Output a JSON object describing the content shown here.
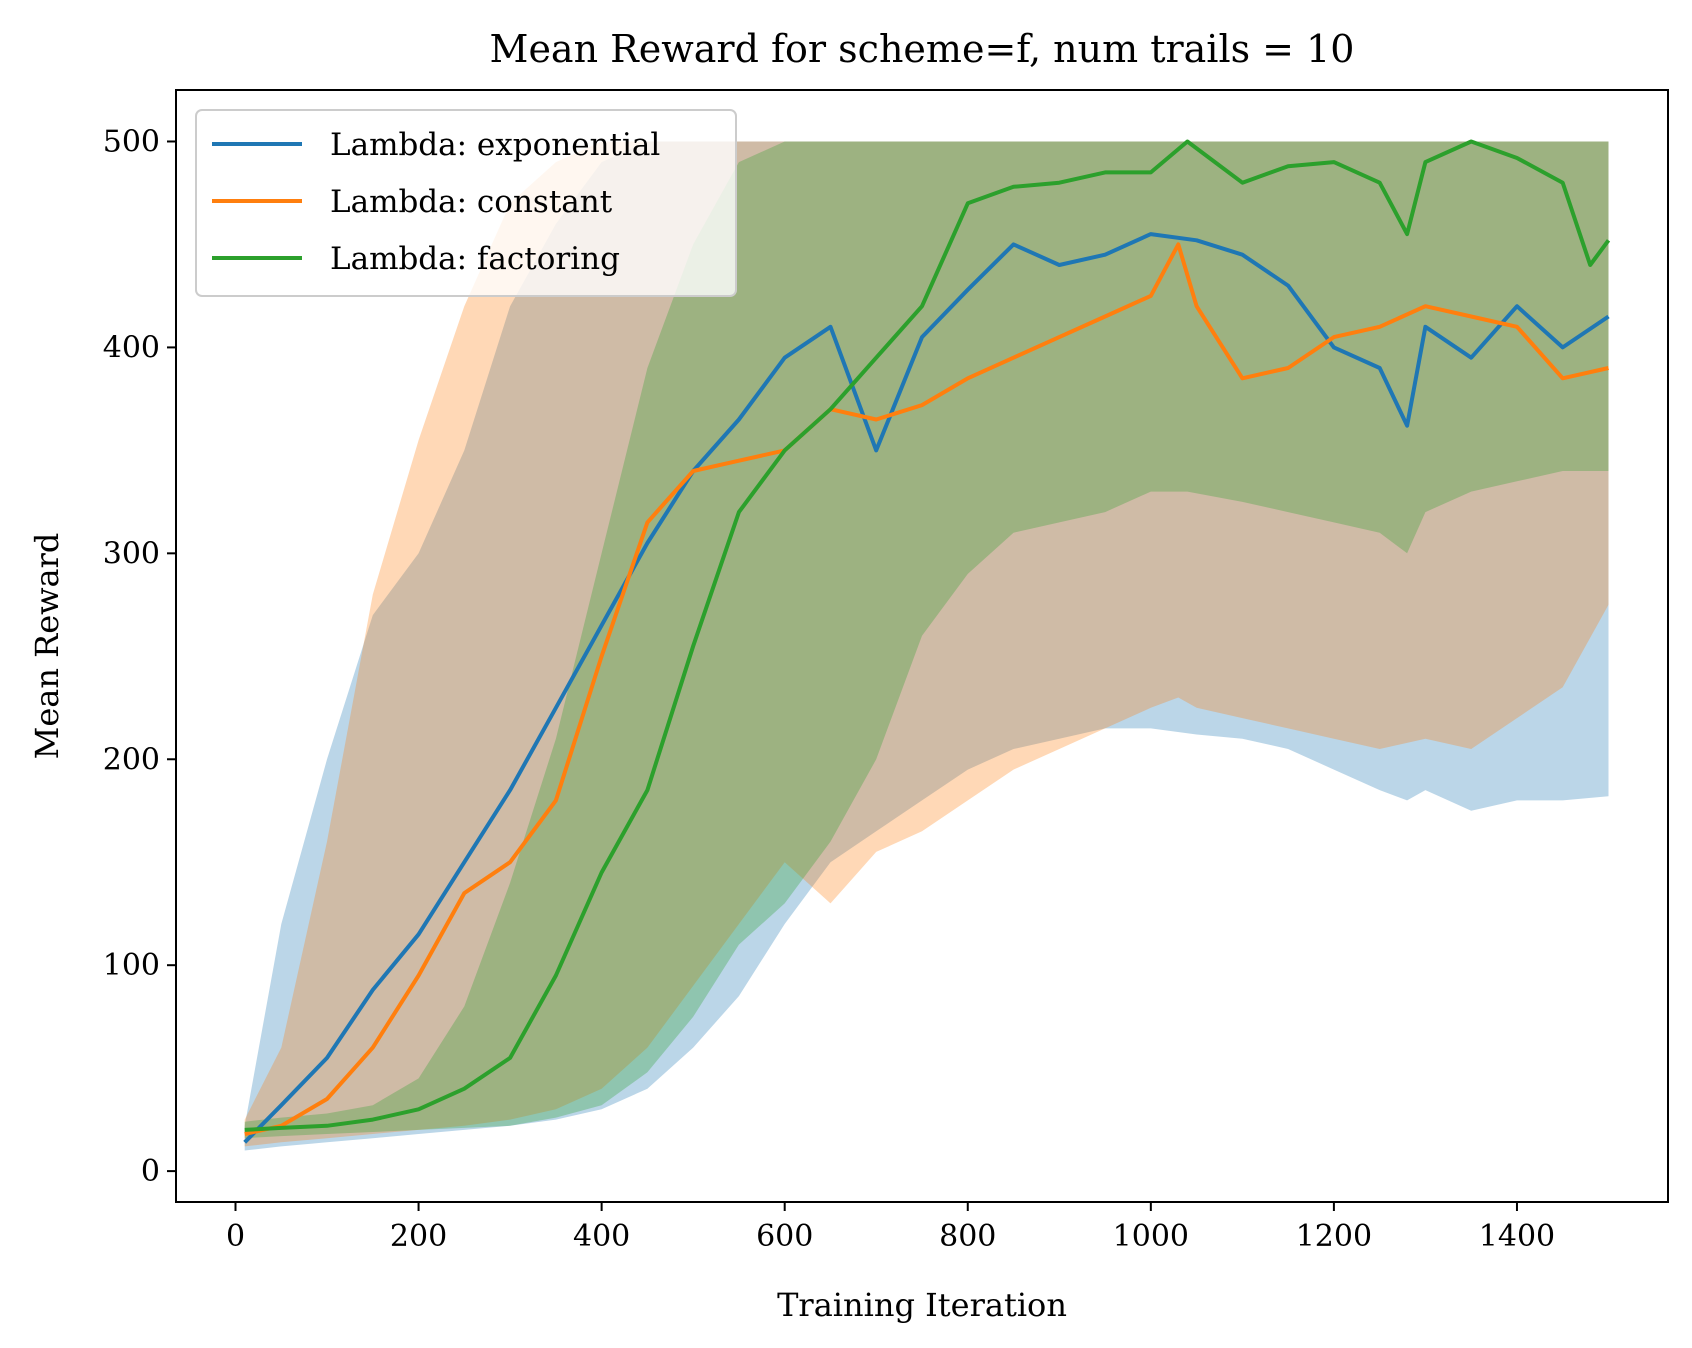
{
  "chart_data": {
    "type": "line",
    "title": "Mean Reward for scheme=f, num trails = 10",
    "xlabel": "Training Iteration",
    "ylabel": "Mean Reward",
    "xlim": [
      -65,
      1565
    ],
    "ylim": [
      -15,
      525
    ],
    "xticks": [
      0,
      200,
      400,
      600,
      800,
      1000,
      1200,
      1400
    ],
    "yticks": [
      0,
      100,
      200,
      300,
      400,
      500
    ],
    "legend_position": "upper-left",
    "series": [
      {
        "name": "Lambda: exponential",
        "color": "#1f77b4",
        "x": [
          10,
          50,
          100,
          150,
          200,
          250,
          300,
          350,
          400,
          450,
          500,
          550,
          600,
          650,
          700,
          750,
          800,
          850,
          900,
          950,
          1000,
          1050,
          1100,
          1150,
          1200,
          1250,
          1280,
          1300,
          1350,
          1400,
          1450,
          1500
        ],
        "mean": [
          14,
          32,
          55,
          88,
          115,
          150,
          185,
          225,
          265,
          305,
          340,
          365,
          395,
          410,
          350,
          405,
          428,
          450,
          440,
          445,
          455,
          452,
          445,
          430,
          400,
          390,
          362,
          410,
          395,
          420,
          400,
          415
        ],
        "lower": [
          10,
          12,
          14,
          16,
          18,
          20,
          22,
          25,
          30,
          40,
          60,
          85,
          120,
          150,
          165,
          180,
          195,
          205,
          210,
          215,
          215,
          212,
          210,
          205,
          195,
          185,
          180,
          185,
          175,
          180,
          180,
          182
        ],
        "upper": [
          22,
          120,
          200,
          270,
          300,
          350,
          420,
          460,
          490,
          500,
          500,
          500,
          500,
          500,
          500,
          500,
          500,
          500,
          500,
          500,
          500,
          500,
          500,
          500,
          500,
          500,
          500,
          500,
          500,
          500,
          500,
          500
        ]
      },
      {
        "name": "Lambda: constant",
        "color": "#ff7f0e",
        "x": [
          10,
          50,
          100,
          150,
          200,
          250,
          300,
          350,
          400,
          450,
          500,
          550,
          600,
          650,
          700,
          750,
          800,
          850,
          900,
          950,
          1000,
          1030,
          1050,
          1100,
          1150,
          1200,
          1250,
          1300,
          1350,
          1400,
          1450,
          1500
        ],
        "mean": [
          18,
          22,
          35,
          60,
          95,
          135,
          150,
          180,
          250,
          315,
          340,
          345,
          350,
          370,
          365,
          372,
          385,
          395,
          405,
          415,
          425,
          450,
          420,
          385,
          390,
          405,
          410,
          420,
          415,
          410,
          385,
          390
        ],
        "lower": [
          12,
          14,
          16,
          18,
          20,
          22,
          25,
          30,
          40,
          60,
          90,
          120,
          150,
          130,
          155,
          165,
          180,
          195,
          205,
          215,
          225,
          230,
          225,
          220,
          215,
          210,
          205,
          210,
          205,
          220,
          235,
          275
        ],
        "upper": [
          25,
          60,
          160,
          280,
          355,
          420,
          470,
          490,
          500,
          500,
          500,
          500,
          500,
          500,
          500,
          500,
          500,
          500,
          500,
          500,
          500,
          500,
          500,
          500,
          500,
          500,
          500,
          500,
          500,
          500,
          500,
          500
        ]
      },
      {
        "name": "Lambda: factoring",
        "color": "#2ca02c",
        "x": [
          10,
          50,
          100,
          150,
          200,
          250,
          300,
          350,
          400,
          450,
          500,
          550,
          600,
          650,
          700,
          750,
          800,
          850,
          900,
          950,
          1000,
          1040,
          1100,
          1150,
          1200,
          1250,
          1280,
          1300,
          1350,
          1400,
          1450,
          1480,
          1500
        ],
        "mean": [
          20,
          21,
          22,
          25,
          30,
          40,
          55,
          95,
          145,
          185,
          255,
          320,
          350,
          370,
          395,
          420,
          470,
          478,
          480,
          485,
          485,
          500,
          480,
          488,
          490,
          480,
          455,
          490,
          500,
          492,
          480,
          440,
          452
        ],
        "lower": [
          16,
          17,
          18,
          19,
          20,
          21,
          22,
          26,
          32,
          48,
          75,
          110,
          130,
          160,
          200,
          260,
          290,
          310,
          315,
          320,
          330,
          330,
          325,
          320,
          315,
          310,
          300,
          320,
          330,
          335,
          340,
          340,
          340
        ],
        "upper": [
          24,
          26,
          28,
          32,
          45,
          80,
          140,
          210,
          300,
          390,
          450,
          490,
          500,
          500,
          500,
          500,
          500,
          500,
          500,
          500,
          500,
          500,
          500,
          500,
          500,
          500,
          500,
          500,
          500,
          500,
          500,
          500,
          500
        ]
      }
    ]
  }
}
